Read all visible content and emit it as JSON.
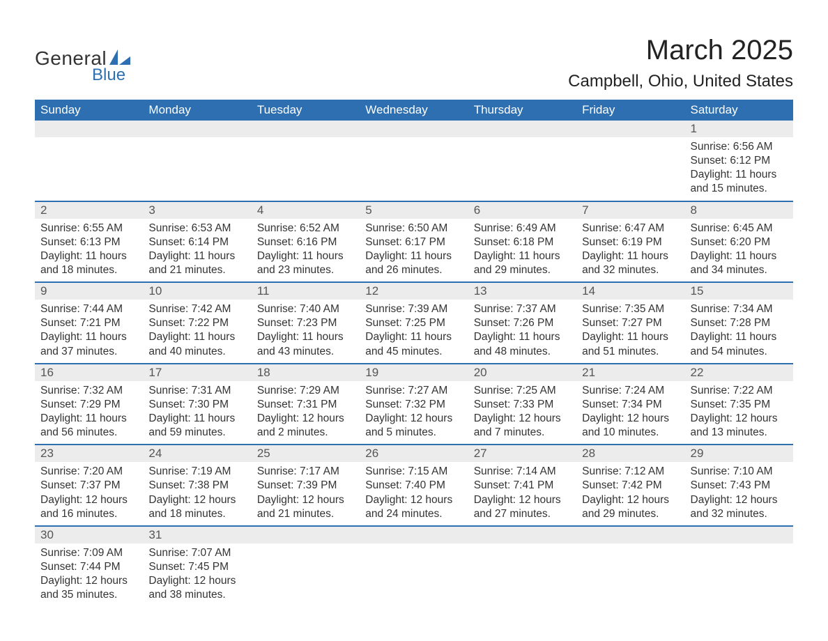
{
  "logo": {
    "general": "General",
    "blue": "Blue",
    "accent_color": "#2d6fb0"
  },
  "title": "March 2025",
  "location": "Campbell, Ohio, United States",
  "colors": {
    "header_bg": "#2d6fb0",
    "header_text": "#ffffff",
    "daynum_bg": "#ececec",
    "border": "#2d6fb0",
    "body_text": "#333333"
  },
  "day_headers": [
    "Sunday",
    "Monday",
    "Tuesday",
    "Wednesday",
    "Thursday",
    "Friday",
    "Saturday"
  ],
  "weeks": [
    [
      {
        "empty": true
      },
      {
        "empty": true
      },
      {
        "empty": true
      },
      {
        "empty": true
      },
      {
        "empty": true
      },
      {
        "empty": true
      },
      {
        "n": "1",
        "sunrise": "6:56 AM",
        "sunset": "6:12 PM",
        "daylight": "11 hours and 15 minutes."
      }
    ],
    [
      {
        "n": "2",
        "sunrise": "6:55 AM",
        "sunset": "6:13 PM",
        "daylight": "11 hours and 18 minutes."
      },
      {
        "n": "3",
        "sunrise": "6:53 AM",
        "sunset": "6:14 PM",
        "daylight": "11 hours and 21 minutes."
      },
      {
        "n": "4",
        "sunrise": "6:52 AM",
        "sunset": "6:16 PM",
        "daylight": "11 hours and 23 minutes."
      },
      {
        "n": "5",
        "sunrise": "6:50 AM",
        "sunset": "6:17 PM",
        "daylight": "11 hours and 26 minutes."
      },
      {
        "n": "6",
        "sunrise": "6:49 AM",
        "sunset": "6:18 PM",
        "daylight": "11 hours and 29 minutes."
      },
      {
        "n": "7",
        "sunrise": "6:47 AM",
        "sunset": "6:19 PM",
        "daylight": "11 hours and 32 minutes."
      },
      {
        "n": "8",
        "sunrise": "6:45 AM",
        "sunset": "6:20 PM",
        "daylight": "11 hours and 34 minutes."
      }
    ],
    [
      {
        "n": "9",
        "sunrise": "7:44 AM",
        "sunset": "7:21 PM",
        "daylight": "11 hours and 37 minutes."
      },
      {
        "n": "10",
        "sunrise": "7:42 AM",
        "sunset": "7:22 PM",
        "daylight": "11 hours and 40 minutes."
      },
      {
        "n": "11",
        "sunrise": "7:40 AM",
        "sunset": "7:23 PM",
        "daylight": "11 hours and 43 minutes."
      },
      {
        "n": "12",
        "sunrise": "7:39 AM",
        "sunset": "7:25 PM",
        "daylight": "11 hours and 45 minutes."
      },
      {
        "n": "13",
        "sunrise": "7:37 AM",
        "sunset": "7:26 PM",
        "daylight": "11 hours and 48 minutes."
      },
      {
        "n": "14",
        "sunrise": "7:35 AM",
        "sunset": "7:27 PM",
        "daylight": "11 hours and 51 minutes."
      },
      {
        "n": "15",
        "sunrise": "7:34 AM",
        "sunset": "7:28 PM",
        "daylight": "11 hours and 54 minutes."
      }
    ],
    [
      {
        "n": "16",
        "sunrise": "7:32 AM",
        "sunset": "7:29 PM",
        "daylight": "11 hours and 56 minutes."
      },
      {
        "n": "17",
        "sunrise": "7:31 AM",
        "sunset": "7:30 PM",
        "daylight": "11 hours and 59 minutes."
      },
      {
        "n": "18",
        "sunrise": "7:29 AM",
        "sunset": "7:31 PM",
        "daylight": "12 hours and 2 minutes."
      },
      {
        "n": "19",
        "sunrise": "7:27 AM",
        "sunset": "7:32 PM",
        "daylight": "12 hours and 5 minutes."
      },
      {
        "n": "20",
        "sunrise": "7:25 AM",
        "sunset": "7:33 PM",
        "daylight": "12 hours and 7 minutes."
      },
      {
        "n": "21",
        "sunrise": "7:24 AM",
        "sunset": "7:34 PM",
        "daylight": "12 hours and 10 minutes."
      },
      {
        "n": "22",
        "sunrise": "7:22 AM",
        "sunset": "7:35 PM",
        "daylight": "12 hours and 13 minutes."
      }
    ],
    [
      {
        "n": "23",
        "sunrise": "7:20 AM",
        "sunset": "7:37 PM",
        "daylight": "12 hours and 16 minutes."
      },
      {
        "n": "24",
        "sunrise": "7:19 AM",
        "sunset": "7:38 PM",
        "daylight": "12 hours and 18 minutes."
      },
      {
        "n": "25",
        "sunrise": "7:17 AM",
        "sunset": "7:39 PM",
        "daylight": "12 hours and 21 minutes."
      },
      {
        "n": "26",
        "sunrise": "7:15 AM",
        "sunset": "7:40 PM",
        "daylight": "12 hours and 24 minutes."
      },
      {
        "n": "27",
        "sunrise": "7:14 AM",
        "sunset": "7:41 PM",
        "daylight": "12 hours and 27 minutes."
      },
      {
        "n": "28",
        "sunrise": "7:12 AM",
        "sunset": "7:42 PM",
        "daylight": "12 hours and 29 minutes."
      },
      {
        "n": "29",
        "sunrise": "7:10 AM",
        "sunset": "7:43 PM",
        "daylight": "12 hours and 32 minutes."
      }
    ],
    [
      {
        "n": "30",
        "sunrise": "7:09 AM",
        "sunset": "7:44 PM",
        "daylight": "12 hours and 35 minutes."
      },
      {
        "n": "31",
        "sunrise": "7:07 AM",
        "sunset": "7:45 PM",
        "daylight": "12 hours and 38 minutes."
      },
      {
        "empty": true
      },
      {
        "empty": true
      },
      {
        "empty": true
      },
      {
        "empty": true
      },
      {
        "empty": true
      }
    ]
  ],
  "labels": {
    "sunrise": "Sunrise:",
    "sunset": "Sunset:",
    "daylight": "Daylight:"
  }
}
